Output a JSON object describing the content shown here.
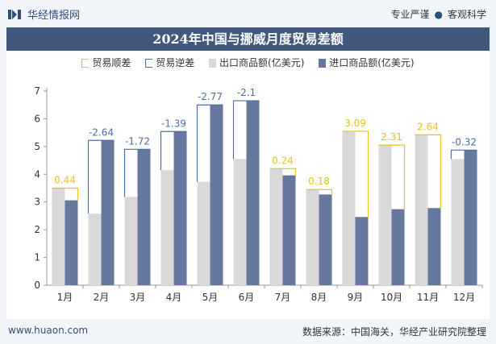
{
  "brand": {
    "name": "华经情报网"
  },
  "slogan": {
    "left": "专业严谨",
    "right": "客观科学"
  },
  "colors": {
    "export": "#d9d9d9",
    "import": "#66789e",
    "surplus": "#e8c21f",
    "deficit": "#4d6fa6",
    "title_bg": "#42577e"
  },
  "chart_data": {
    "type": "bar",
    "title": "2024年中国与挪威月度贸易差额",
    "categories": [
      "1月",
      "2月",
      "3月",
      "4月",
      "5月",
      "6月",
      "7月",
      "8月",
      "9月",
      "10月",
      "11月",
      "12月"
    ],
    "series": [
      {
        "name": "出口商品额(亿美元)",
        "values": [
          3.5,
          2.58,
          3.18,
          4.15,
          3.73,
          4.55,
          4.2,
          3.45,
          5.55,
          5.05,
          5.42,
          4.55
        ]
      },
      {
        "name": "进口商品额(亿美元)",
        "values": [
          3.06,
          5.22,
          4.9,
          5.54,
          6.5,
          6.65,
          3.96,
          3.27,
          2.46,
          2.74,
          2.78,
          4.87
        ]
      }
    ],
    "balance": {
      "surplus_name": "贸易顺差",
      "deficit_name": "贸易逆差",
      "values": [
        0.44,
        -2.64,
        -1.72,
        -1.39,
        -2.77,
        -2.1,
        0.24,
        0.18,
        3.09,
        2.31,
        2.64,
        -0.32
      ],
      "labels": [
        "0.44",
        "-2.64",
        "-1.72",
        "-1.39",
        "-2.77",
        "-2.1",
        "0.24",
        "0.18",
        "3.09",
        "2.31",
        "2.64",
        "-0.32"
      ]
    },
    "ylim": [
      0,
      7
    ],
    "yticks": [
      "0",
      "1",
      "2",
      "3",
      "4",
      "5",
      "6",
      "7"
    ],
    "xlabel": "",
    "ylabel": "",
    "legend_position": "top"
  },
  "footer": {
    "url": "www.huaon.com",
    "source": "数据来源：中国海关，华经产业研究院整理"
  }
}
